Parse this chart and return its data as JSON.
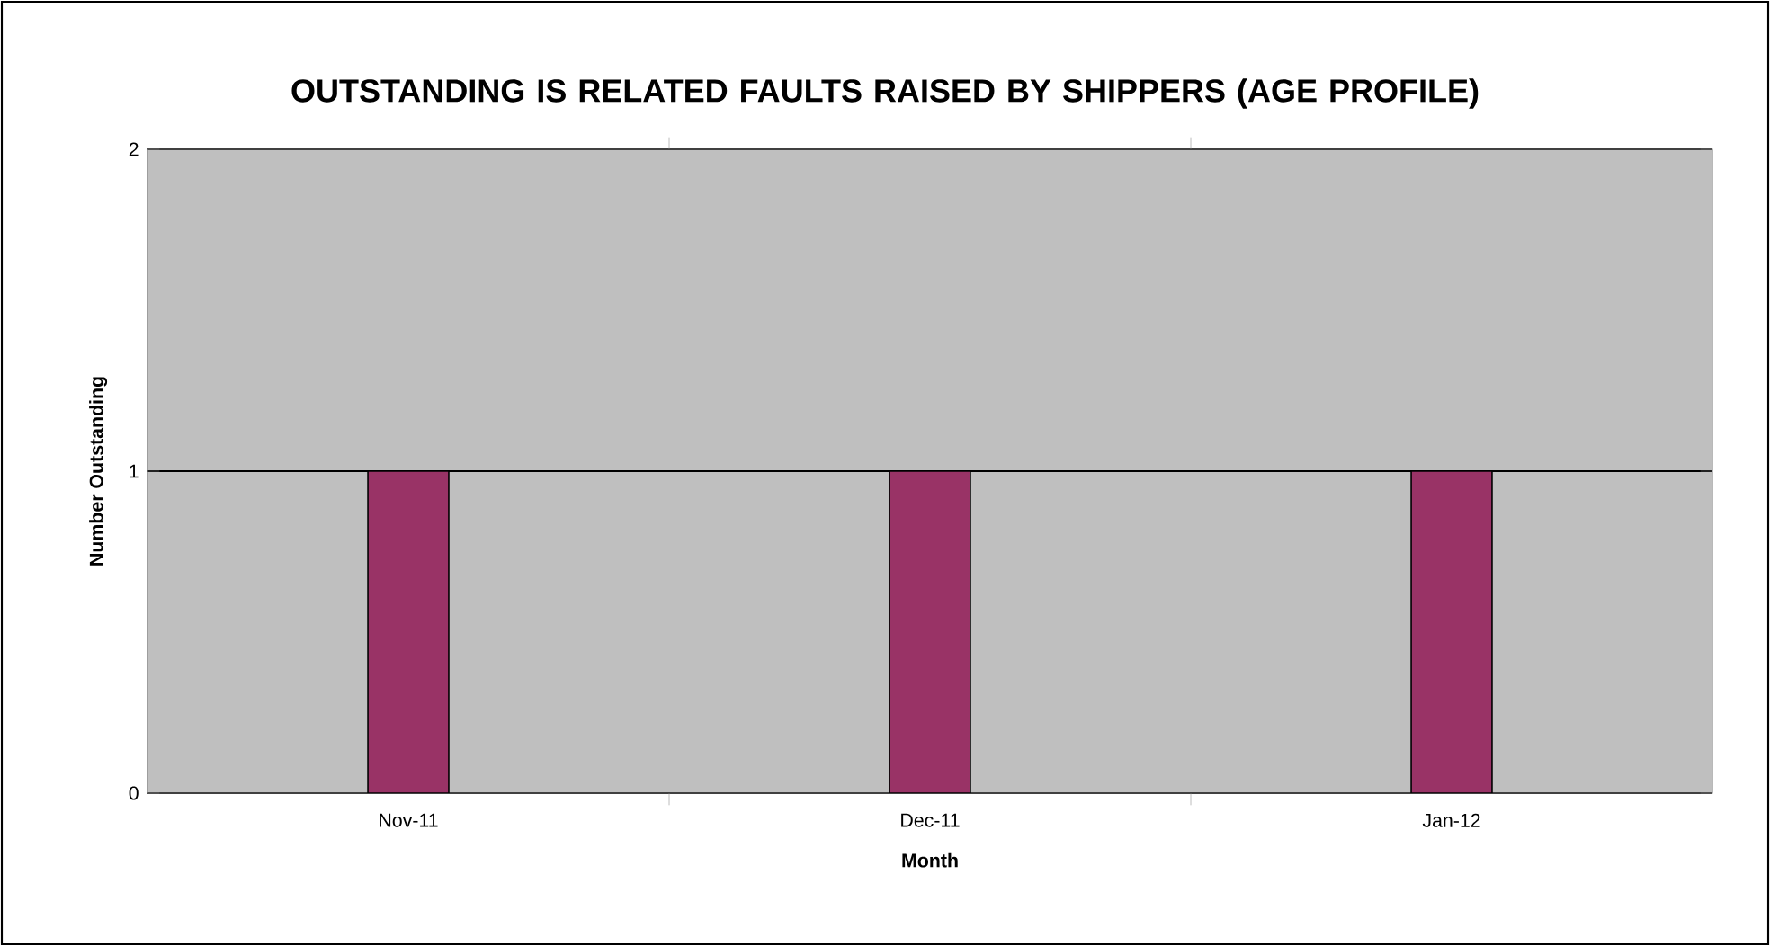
{
  "chart_data": {
    "type": "bar",
    "title": "OUTSTANDING IS RELATED FAULTS RAISED BY SHIPPERS (AGE PROFILE)",
    "xlabel": "Month",
    "ylabel": "Number Outstanding",
    "categories": [
      "Nov-11",
      "Dec-11",
      "Jan-12"
    ],
    "series": [
      {
        "color": "#993366",
        "values": [
          1,
          1,
          1
        ]
      }
    ],
    "ylim": [
      0,
      2
    ],
    "yticks": [
      0,
      1,
      2
    ],
    "grid": "y"
  }
}
